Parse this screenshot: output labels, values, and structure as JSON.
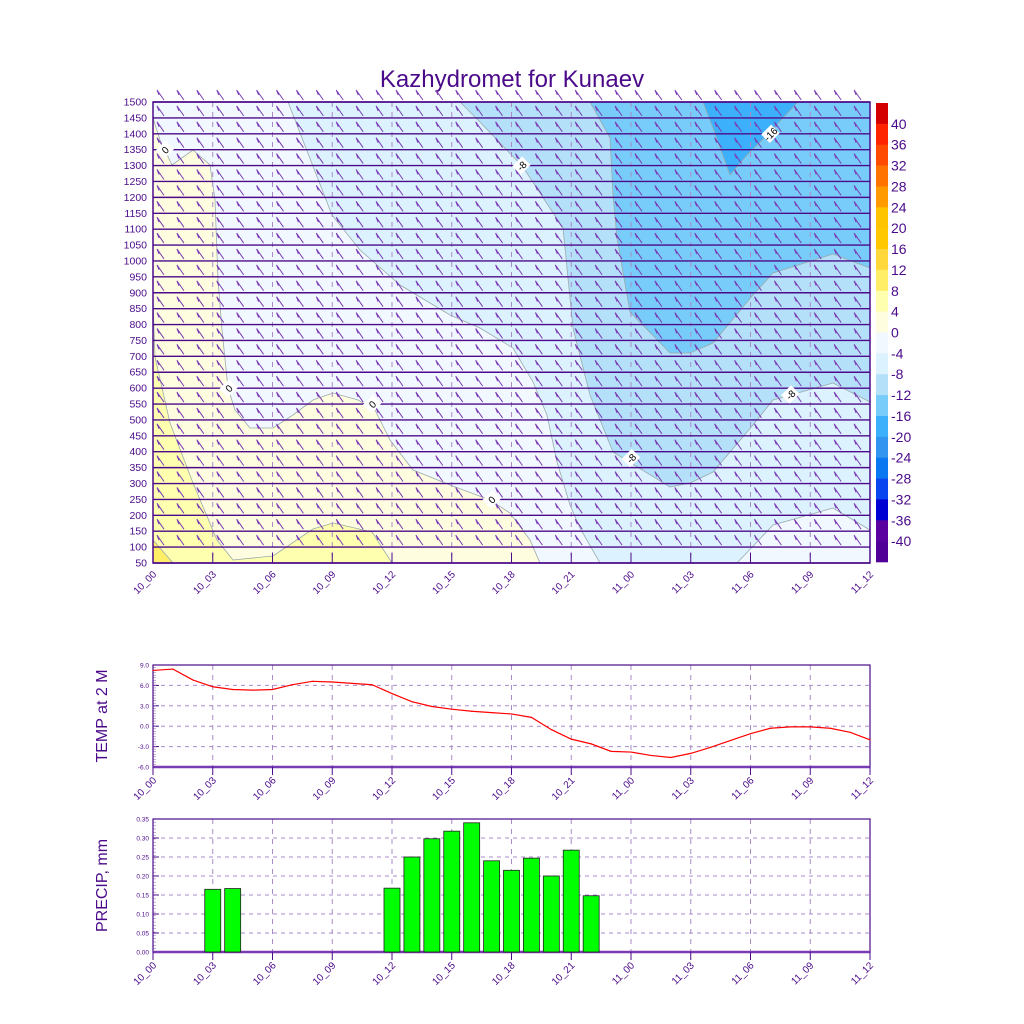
{
  "chart_data": [
    {
      "type": "contour",
      "title": "Kazhydromet for Kunaev",
      "x_tick_labels": [
        "10_00",
        "10_03",
        "10_06",
        "10_09",
        "10_12",
        "10_15",
        "10_18",
        "10_21",
        "11_00",
        "11_03",
        "11_06",
        "11_09",
        "11_12"
      ],
      "x_range_hours": [
        0,
        36
      ],
      "y_tick_labels": [
        "50",
        "100",
        "150",
        "200",
        "250",
        "300",
        "350",
        "400",
        "450",
        "500",
        "550",
        "600",
        "650",
        "700",
        "750",
        "800",
        "850",
        "900",
        "950",
        "1000",
        "1050",
        "1100",
        "1150",
        "1200",
        "1250",
        "1300",
        "1350",
        "1400",
        "1450",
        "1500"
      ],
      "ylim": [
        50,
        1500
      ],
      "colorbar": {
        "labels": [
          "40",
          "36",
          "32",
          "28",
          "24",
          "20",
          "16",
          "12",
          "8",
          "4",
          "0",
          "-4",
          "-8",
          "-12",
          "-16",
          "-20",
          "-24",
          "-28",
          "-32",
          "-36",
          "-40"
        ],
        "colors": [
          "#d40000",
          "#ff2400",
          "#ff4b00",
          "#ff7300",
          "#ff9b00",
          "#ffc400",
          "#ffc800",
          "#ffd83c",
          "#ffee66",
          "#ffffb0",
          "#fffde0",
          "#f2f8ff",
          "#dcf2ff",
          "#b4e0fa",
          "#78ccfa",
          "#3cb0fa",
          "#3296f0",
          "#0a78f0",
          "#0a46f0",
          "#0000d2",
          "#5a00a0",
          "#500096"
        ]
      },
      "contour_labels": [
        {
          "text": "0",
          "hour": 0.6,
          "level": 1350
        },
        {
          "text": "0",
          "hour": 3.8,
          "level": 600
        },
        {
          "text": "0",
          "hour": 11.0,
          "level": 550
        },
        {
          "text": "0",
          "hour": 17.0,
          "level": 250
        },
        {
          "text": "-8",
          "hour": 18.5,
          "level": 1300
        },
        {
          "text": "-8",
          "hour": 24.0,
          "level": 380
        },
        {
          "text": "-8",
          "hour": 32.0,
          "level": 580
        },
        {
          "text": "-16",
          "hour": 31.0,
          "level": 1400
        }
      ]
    },
    {
      "type": "line",
      "ylabel": "TEMP at 2 M",
      "x_tick_labels": [
        "10_00",
        "10_03",
        "10_06",
        "10_09",
        "10_12",
        "10_15",
        "10_18",
        "10_21",
        "11_00",
        "11_03",
        "11_06",
        "11_09",
        "11_12"
      ],
      "y_tick_labels": [
        "9.0",
        "6.0",
        "3.0",
        "0.0",
        "-3.0",
        "-6.0"
      ],
      "ylim": [
        -6,
        9
      ],
      "line_color": "#ff0000",
      "x_hours": [
        0,
        1,
        2,
        3,
        4,
        5,
        6,
        7,
        8,
        9,
        10,
        11,
        12,
        13,
        14,
        15,
        16,
        17,
        18,
        19,
        20,
        21,
        22,
        23,
        24,
        25,
        26,
        27,
        28,
        29,
        30,
        31,
        32,
        33,
        34,
        35,
        36
      ],
      "values": [
        8.2,
        8.4,
        6.8,
        5.8,
        5.4,
        5.3,
        5.4,
        6.1,
        6.6,
        6.5,
        6.3,
        6.1,
        4.8,
        3.6,
        2.9,
        2.5,
        2.2,
        2.0,
        1.8,
        1.3,
        -0.5,
        -1.9,
        -2.6,
        -3.7,
        -3.8,
        -4.3,
        -4.6,
        -4.0,
        -3.1,
        -2.1,
        -1.1,
        -0.3,
        -0.1,
        -0.1,
        -0.3,
        -0.9,
        -2.0
      ]
    },
    {
      "type": "bar",
      "ylabel": "PRECIP, mm",
      "x_tick_labels": [
        "10_00",
        "10_03",
        "10_06",
        "10_09",
        "10_12",
        "10_15",
        "10_18",
        "10_21",
        "11_00",
        "11_03",
        "11_06",
        "11_09",
        "11_12"
      ],
      "y_tick_labels": [
        "0.35",
        "0.30",
        "0.25",
        "0.20",
        "0.15",
        "0.10",
        "0.05",
        "0.00"
      ],
      "ylim": [
        0,
        0.35
      ],
      "bar_color": "#00ff00",
      "x_hours": [
        3,
        4,
        12,
        13,
        14,
        15,
        16,
        17,
        18,
        19,
        20,
        21,
        22
      ],
      "values": [
        0.165,
        0.167,
        0.168,
        0.25,
        0.298,
        0.318,
        0.34,
        0.24,
        0.215,
        0.247,
        0.2,
        0.268,
        0.148
      ]
    }
  ]
}
